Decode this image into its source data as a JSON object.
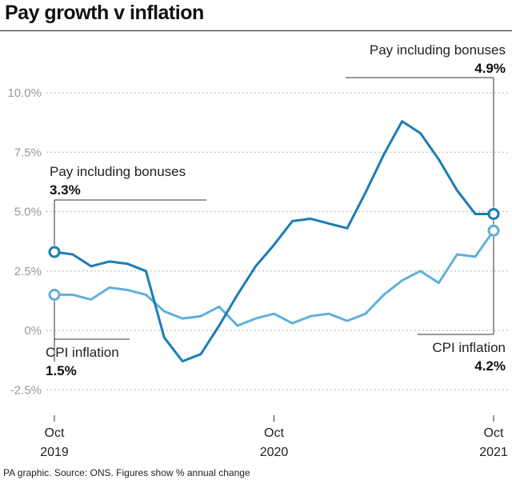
{
  "title": "Pay growth v inflation",
  "footer": "PA graphic. Source: ONS. Figures show % annual change",
  "annotations": {
    "pay_start_label": "Pay including bonuses",
    "pay_start_value": "3.3%",
    "cpi_start_label": "CPI inflation",
    "cpi_start_value": "1.5%",
    "pay_end_label": "Pay including bonuses",
    "pay_end_value": "4.9%",
    "cpi_end_label": "CPI inflation",
    "cpi_end_value": "4.2%"
  },
  "chart_data": {
    "type": "line",
    "x": [
      "2019-10",
      "2019-11",
      "2019-12",
      "2020-01",
      "2020-02",
      "2020-03",
      "2020-04",
      "2020-05",
      "2020-06",
      "2020-07",
      "2020-08",
      "2020-09",
      "2020-10",
      "2020-11",
      "2020-12",
      "2021-01",
      "2021-02",
      "2021-03",
      "2021-04",
      "2021-05",
      "2021-06",
      "2021-07",
      "2021-08",
      "2021-09",
      "2021-10"
    ],
    "x_ticks": [
      {
        "x": "2019-10",
        "month": "Oct",
        "year": "2019"
      },
      {
        "x": "2020-10",
        "month": "Oct",
        "year": "2020"
      },
      {
        "x": "2021-10",
        "month": "Oct",
        "year": "2021"
      }
    ],
    "y_ticks": [
      {
        "value": 10.0,
        "label": "10.0%"
      },
      {
        "value": 7.5,
        "label": "7.5%"
      },
      {
        "value": 5.0,
        "label": "5.0%"
      },
      {
        "value": 2.5,
        "label": "2.5%"
      },
      {
        "value": 0,
        "label": "0%"
      },
      {
        "value": -2.5,
        "label": "-2.5%"
      }
    ],
    "ylim": [
      -2.5,
      10.0
    ],
    "grid": "horizontal dashed",
    "series": [
      {
        "name": "Pay including bonuses",
        "color": "#1b7db5",
        "values": [
          3.3,
          3.2,
          2.7,
          2.9,
          2.8,
          2.5,
          -0.3,
          -1.3,
          -1.0,
          0.2,
          1.5,
          2.7,
          3.6,
          4.6,
          4.7,
          4.5,
          4.3,
          5.8,
          7.4,
          8.8,
          8.3,
          7.2,
          5.9,
          4.9,
          4.9
        ]
      },
      {
        "name": "CPI inflation",
        "color": "#5fb0dc",
        "values": [
          1.5,
          1.5,
          1.3,
          1.8,
          1.7,
          1.5,
          0.8,
          0.5,
          0.6,
          1.0,
          0.2,
          0.5,
          0.7,
          0.3,
          0.6,
          0.7,
          0.4,
          0.7,
          1.5,
          2.1,
          2.5,
          2.0,
          3.2,
          3.1,
          4.2
        ]
      }
    ]
  }
}
